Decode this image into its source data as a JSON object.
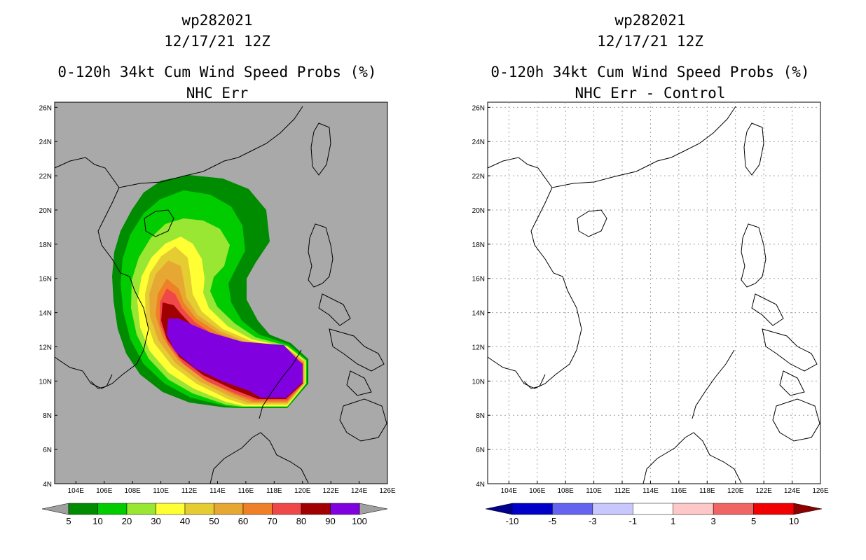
{
  "left": {
    "title_lines": [
      "wp282021",
      "12/17/21 12Z",
      "",
      "0-120h 34kt Cum Wind Speed Probs (%)",
      "NHC Err"
    ],
    "background_color": "#a9a9a9",
    "colorbar": {
      "colors": [
        "#008c00",
        "#00cc00",
        "#99e633",
        "#ffff33",
        "#e6cc33",
        "#e6a833",
        "#f08028",
        "#f04848",
        "#a00000",
        "#8000e0"
      ],
      "labels": [
        "5",
        "10",
        "20",
        "30",
        "40",
        "50",
        "60",
        "70",
        "80",
        "90",
        "100"
      ],
      "extend_color": "#a0a0a0"
    }
  },
  "right": {
    "title_lines": [
      "wp282021",
      "12/17/21 12Z",
      "",
      "0-120h 34kt Cum Wind Speed Probs (%)",
      "NHC Err - Control"
    ],
    "background_color": "#ffffff",
    "colorbar": {
      "colors": [
        "#0000c8",
        "#6464f0",
        "#c8c8ff",
        "#ffffff",
        "#ffc8c8",
        "#f06464",
        "#f00000"
      ],
      "labels": [
        "-10",
        "-5",
        "-3",
        "-1",
        "1",
        "3",
        "5",
        "10"
      ],
      "left_arrow_color": "#00008c",
      "right_arrow_color": "#8c0000"
    }
  },
  "axes": {
    "lon_labels": [
      "104E",
      "106E",
      "108E",
      "110E",
      "112E",
      "114E",
      "116E",
      "118E",
      "120E",
      "122E",
      "124E",
      "126E"
    ],
    "lat_labels": [
      "26N",
      "24N",
      "22N",
      "20N",
      "18N",
      "16N",
      "14N",
      "12N",
      "10N",
      "8N",
      "6N",
      "4N"
    ],
    "lon_range": [
      102.5,
      126
    ],
    "lat_range": [
      4,
      26.3
    ]
  }
}
